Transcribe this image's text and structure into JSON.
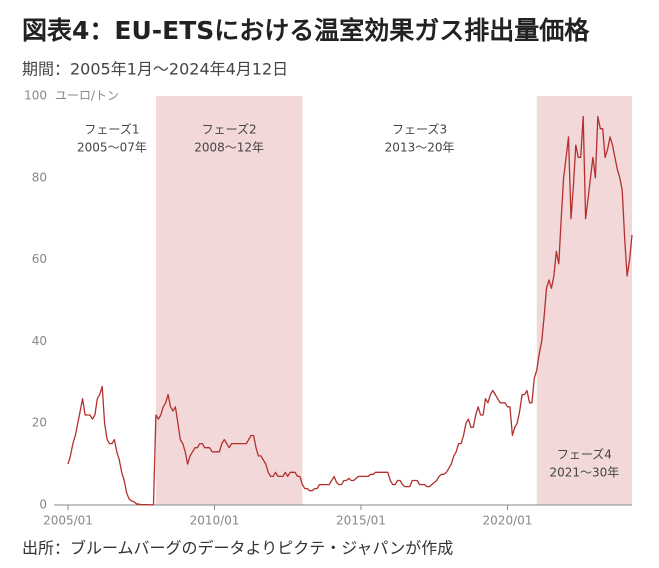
{
  "chart_data": {
    "type": "line",
    "title": "図表4：EU-ETSにおける温室効果ガス排出量価格",
    "subtitle": "期間：2005年1月～2024年4月12日",
    "y_unit": "ユーロ/トン",
    "source": "出所：ブルームバーグのデータよりピクテ・ジャパンが作成",
    "color": "#b3302f",
    "shade_color": "#f2d8d8",
    "xlim": [
      "2005/01",
      "2024/04"
    ],
    "xticks": [
      "2005/01",
      "2010/01",
      "2015/01",
      "2020/01"
    ],
    "ylim": [
      0,
      100
    ],
    "yticks": [
      0,
      20,
      40,
      60,
      80,
      100
    ],
    "phases": [
      {
        "label": "フェーズ1",
        "period": "2005～07年",
        "start": "2005/01",
        "end": "2008/01",
        "shaded": false
      },
      {
        "label": "フェーズ2",
        "period": "2008～12年",
        "start": "2008/01",
        "end": "2013/01",
        "shaded": true
      },
      {
        "label": "フェーズ3",
        "period": "2013～20年",
        "start": "2013/01",
        "end": "2021/01",
        "shaded": false
      },
      {
        "label": "フェーズ4",
        "period": "2021～30年",
        "start": "2021/01",
        "end": "2024/04",
        "shaded": true
      }
    ],
    "start_year": 2005,
    "values": [
      10,
      12,
      15,
      17,
      20,
      23,
      26,
      22,
      22,
      22,
      21,
      22,
      26,
      27,
      29,
      20,
      16,
      15,
      15,
      16,
      13,
      11,
      8,
      6,
      3,
      1.5,
      1,
      0.8,
      0.3,
      0.2,
      0.1,
      0.1,
      0.1,
      0.05,
      0.05,
      0.02,
      22,
      21,
      22,
      24,
      25,
      27,
      24,
      23,
      24,
      20,
      16,
      15,
      13,
      10,
      12,
      13,
      14,
      14,
      15,
      15,
      14,
      14,
      14,
      13,
      13,
      13,
      13,
      15,
      16,
      15,
      14,
      15,
      15,
      15,
      15,
      15,
      15,
      15,
      16,
      17,
      17,
      14,
      12,
      12,
      11,
      10,
      8,
      7,
      7,
      8,
      7,
      7,
      7,
      8,
      7,
      8,
      8,
      8,
      7,
      7,
      5,
      4,
      4,
      3.5,
      3.5,
      4,
      4,
      5,
      5,
      5,
      5,
      5,
      6,
      7,
      5.5,
      5,
      5,
      6,
      6,
      6.5,
      6,
      6,
      6.5,
      7,
      7,
      7,
      7,
      7,
      7.5,
      7.5,
      8,
      8,
      8,
      8,
      8,
      8,
      6,
      5,
      5,
      6,
      6,
      5,
      4.5,
      4.5,
      4.5,
      6,
      6,
      6,
      5,
      5,
      5,
      4.5,
      4.5,
      5,
      5.5,
      6,
      7,
      7.5,
      7.5,
      8,
      9,
      10,
      12,
      13,
      15,
      15,
      17,
      20,
      21,
      19,
      19,
      22,
      24,
      22,
      22,
      26,
      25,
      27,
      28,
      27,
      26,
      25,
      25,
      25,
      24,
      24,
      17,
      19,
      20,
      23,
      27,
      27,
      28,
      25,
      25,
      31,
      33,
      37,
      40,
      46,
      53,
      55,
      53,
      56,
      62,
      59,
      70,
      80,
      85,
      90,
      70,
      78,
      88,
      85,
      85,
      95,
      70,
      75,
      80,
      85,
      80,
      95,
      92,
      92,
      85,
      87,
      90,
      88,
      85,
      82,
      80,
      77,
      65,
      56,
      60,
      66
    ]
  }
}
